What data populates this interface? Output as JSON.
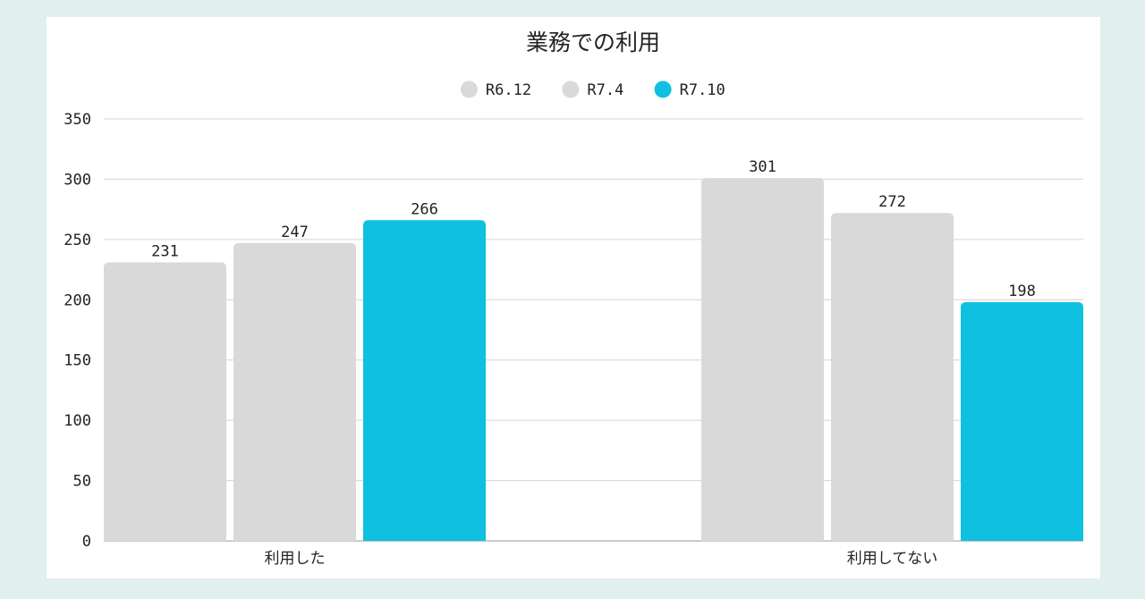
{
  "chart_data": {
    "type": "bar",
    "title": "業務での利用",
    "categories": [
      "利用した",
      "利用してない"
    ],
    "series": [
      {
        "name": "R6.12",
        "values": [
          231,
          301
        ],
        "color": "#d9d9d9"
      },
      {
        "name": "R7.4",
        "values": [
          247,
          272
        ],
        "color": "#d9d9d9"
      },
      {
        "name": "R7.10",
        "values": [
          266,
          198
        ],
        "color": "#0fc0e0"
      }
    ],
    "xlabel": "",
    "ylabel": "",
    "ylim": [
      0,
      350
    ],
    "yticks": [
      0,
      50,
      100,
      150,
      200,
      250,
      300,
      350
    ],
    "grid": true,
    "legend_position": "top-center",
    "data_labels": true
  }
}
